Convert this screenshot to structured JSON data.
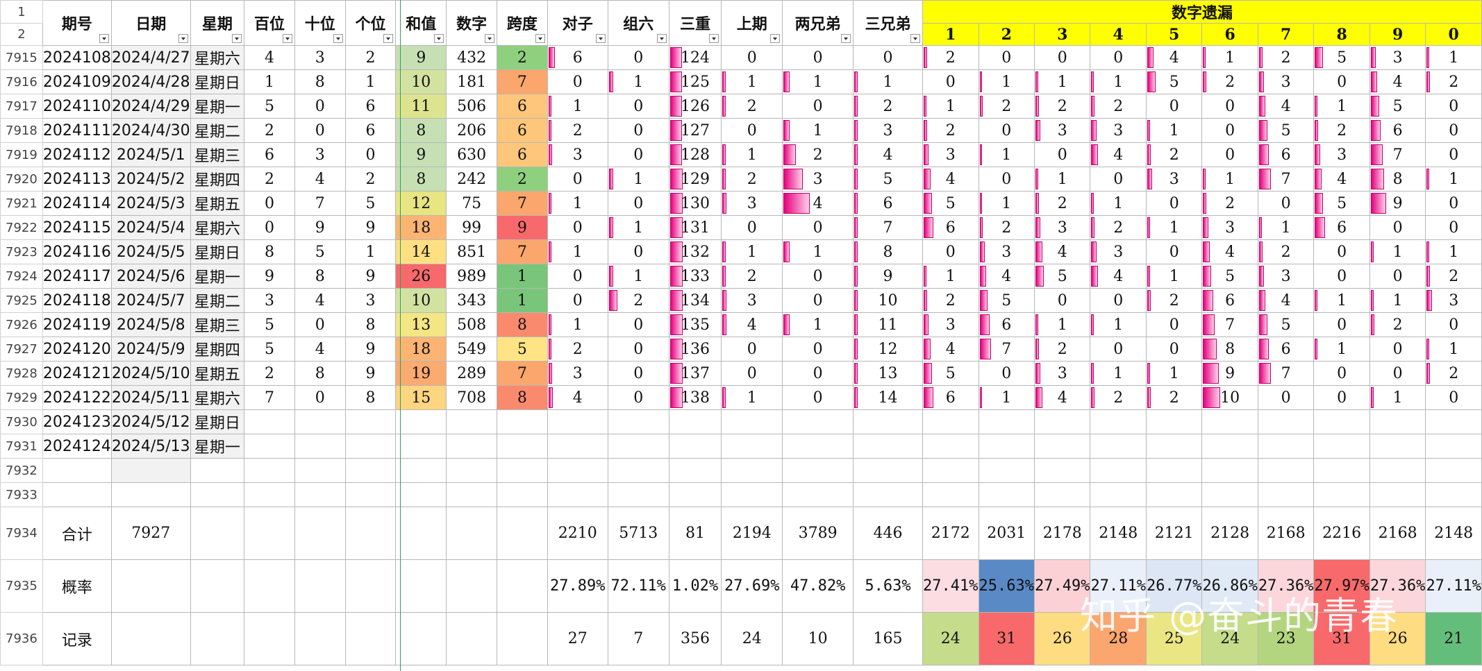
{
  "headers": {
    "issue": "期号",
    "date": "日期",
    "week": "星期",
    "hundreds": "百位",
    "tens": "十位",
    "units": "个位",
    "sum": "和值",
    "number": "数字",
    "span": "跨度",
    "pair": "对子",
    "group6": "组六",
    "triple": "三重",
    "last": "上期",
    "two_brothers": "两兄弟",
    "three_brothers": "三兄弟",
    "missing_title": "数字遗漏"
  },
  "missing_digits": [
    "1",
    "2",
    "3",
    "4",
    "5",
    "6",
    "7",
    "8",
    "9",
    "0"
  ],
  "row_numbers": [
    "1",
    "2",
    "7915",
    "7916",
    "7917",
    "7918",
    "7919",
    "7920",
    "7921",
    "7922",
    "7923",
    "7924",
    "7925",
    "7926",
    "7927",
    "7928",
    "7929",
    "7930",
    "7931",
    "7932",
    "7933",
    "7934",
    "7935",
    "7936"
  ],
  "colors": {
    "yellow": "#ffff00",
    "red_text": "#c00000",
    "purple_digit": "#7030a0",
    "bar_pink": "#e6007e"
  },
  "rows": [
    {
      "issue": "2024108",
      "date": "2024/4/27",
      "week": "星期六",
      "h": "4",
      "t": "3",
      "u": "2",
      "sum": "9",
      "num": "432",
      "span": "2",
      "pair": "6",
      "g6": "0",
      "triple": "124",
      "last": "0",
      "two": "0",
      "three": "0",
      "m": [
        "2",
        "0",
        "0",
        "0",
        "4",
        "1",
        "2",
        "5",
        "3",
        "1"
      ],
      "sumc": "#c6e0b4",
      "spanc": "#8fd07e"
    },
    {
      "issue": "2024109",
      "date": "2024/4/28",
      "week": "星期日",
      "h": "1",
      "t": "8",
      "u": "1",
      "sum": "10",
      "num": "181",
      "span": "7",
      "pair": "0",
      "g6": "1",
      "triple": "125",
      "last": "1",
      "two": "1",
      "three": "1",
      "m": [
        "0",
        "1",
        "1",
        "1",
        "5",
        "2",
        "3",
        "0",
        "4",
        "2"
      ],
      "sumc": "#d2e3a1",
      "spanc": "#fba66c"
    },
    {
      "issue": "2024110",
      "date": "2024/4/29",
      "week": "星期一",
      "h": "5",
      "t": "0",
      "u": "6",
      "sum": "11",
      "num": "506",
      "span": "6",
      "pair": "1",
      "g6": "0",
      "triple": "126",
      "last": "2",
      "two": "0",
      "three": "2",
      "m": [
        "1",
        "2",
        "2",
        "2",
        "0",
        "0",
        "4",
        "1",
        "5",
        "0"
      ],
      "sumc": "#dde48f",
      "spanc": "#fdc67a"
    },
    {
      "issue": "2024111",
      "date": "2024/4/30",
      "week": "星期二",
      "h": "2",
      "t": "0",
      "u": "6",
      "sum": "8",
      "num": "206",
      "span": "6",
      "pair": "2",
      "g6": "0",
      "triple": "127",
      "last": "0",
      "two": "1",
      "three": "3",
      "m": [
        "2",
        "0",
        "3",
        "3",
        "1",
        "0",
        "5",
        "2",
        "6",
        "0"
      ],
      "sumc": "#c6e0b4",
      "spanc": "#fdc67a"
    },
    {
      "issue": "2024112",
      "date": "2024/5/1",
      "week": "星期三",
      "h": "6",
      "t": "3",
      "u": "0",
      "sum": "9",
      "num": "630",
      "span": "6",
      "pair": "3",
      "g6": "0",
      "triple": "128",
      "last": "1",
      "two": "2",
      "three": "4",
      "m": [
        "3",
        "1",
        "0",
        "4",
        "2",
        "0",
        "6",
        "3",
        "7",
        "0"
      ],
      "sumc": "#c6e0b4",
      "spanc": "#fdc67a"
    },
    {
      "issue": "2024113",
      "date": "2024/5/2",
      "week": "星期四",
      "h": "2",
      "t": "4",
      "u": "2",
      "sum": "8",
      "num": "242",
      "span": "2",
      "pair": "0",
      "g6": "1",
      "triple": "129",
      "last": "2",
      "two": "3",
      "three": "5",
      "m": [
        "4",
        "0",
        "1",
        "0",
        "3",
        "1",
        "7",
        "4",
        "8",
        "1"
      ],
      "sumc": "#c6e0b4",
      "spanc": "#8fd07e"
    },
    {
      "issue": "2024114",
      "date": "2024/5/3",
      "week": "星期五",
      "h": "0",
      "t": "7",
      "u": "5",
      "sum": "12",
      "num": "75",
      "span": "7",
      "pair": "1",
      "g6": "0",
      "triple": "130",
      "last": "3",
      "two": "4",
      "three": "6",
      "m": [
        "5",
        "1",
        "2",
        "1",
        "0",
        "2",
        "0",
        "5",
        "9",
        "0"
      ],
      "sumc": "#e8e583",
      "spanc": "#fba66c"
    },
    {
      "issue": "2024115",
      "date": "2024/5/4",
      "week": "星期六",
      "h": "0",
      "t": "9",
      "u": "9",
      "sum": "18",
      "num": "99",
      "span": "9",
      "pair": "0",
      "g6": "1",
      "triple": "131",
      "last": "0",
      "two": "0",
      "three": "7",
      "m": [
        "6",
        "2",
        "3",
        "2",
        "1",
        "3",
        "1",
        "6",
        "0",
        "0"
      ],
      "sumc": "#fbb472",
      "spanc": "#f8696b"
    },
    {
      "issue": "2024116",
      "date": "2024/5/5",
      "week": "星期日",
      "h": "8",
      "t": "5",
      "u": "1",
      "sum": "14",
      "num": "851",
      "span": "7",
      "pair": "1",
      "g6": "0",
      "triple": "132",
      "last": "1",
      "two": "1",
      "three": "8",
      "m": [
        "0",
        "3",
        "4",
        "3",
        "0",
        "4",
        "2",
        "0",
        "1",
        "1"
      ],
      "sumc": "#fee083",
      "spanc": "#fba66c"
    },
    {
      "issue": "2024117",
      "date": "2024/5/6",
      "week": "星期一",
      "h": "9",
      "t": "8",
      "u": "9",
      "sum": "26",
      "num": "989",
      "span": "1",
      "pair": "0",
      "g6": "1",
      "triple": "133",
      "last": "2",
      "two": "0",
      "three": "9",
      "m": [
        "1",
        "4",
        "5",
        "4",
        "1",
        "5",
        "3",
        "0",
        "0",
        "2"
      ],
      "sumc": "#f8696b",
      "spanc": "#79c67b"
    },
    {
      "issue": "2024118",
      "date": "2024/5/7",
      "week": "星期二",
      "h": "3",
      "t": "4",
      "u": "3",
      "sum": "10",
      "num": "343",
      "span": "1",
      "pair": "0",
      "g6": "2",
      "triple": "134",
      "last": "3",
      "two": "0",
      "three": "10",
      "m": [
        "2",
        "5",
        "0",
        "0",
        "2",
        "6",
        "4",
        "1",
        "1",
        "3"
      ],
      "sumc": "#d2e3a1",
      "spanc": "#79c67b"
    },
    {
      "issue": "2024119",
      "date": "2024/5/8",
      "week": "星期三",
      "h": "5",
      "t": "0",
      "u": "8",
      "sum": "13",
      "num": "508",
      "span": "8",
      "pair": "1",
      "g6": "0",
      "triple": "135",
      "last": "4",
      "two": "1",
      "three": "11",
      "m": [
        "3",
        "6",
        "1",
        "1",
        "0",
        "7",
        "5",
        "0",
        "2",
        "0"
      ],
      "sumc": "#f3e684",
      "spanc": "#fa8a6e"
    },
    {
      "issue": "2024120",
      "date": "2024/5/9",
      "week": "星期四",
      "h": "5",
      "t": "4",
      "u": "9",
      "sum": "18",
      "num": "549",
      "span": "5",
      "pair": "2",
      "g6": "0",
      "triple": "136",
      "last": "0",
      "two": "0",
      "three": "12",
      "m": [
        "4",
        "7",
        "2",
        "0",
        "0",
        "8",
        "6",
        "1",
        "0",
        "1"
      ],
      "sumc": "#fbb472",
      "spanc": "#fee484"
    },
    {
      "issue": "2024121",
      "date": "2024/5/10",
      "week": "星期五",
      "h": "2",
      "t": "8",
      "u": "9",
      "sum": "19",
      "num": "289",
      "span": "7",
      "pair": "3",
      "g6": "0",
      "triple": "137",
      "last": "0",
      "two": "0",
      "three": "13",
      "m": [
        "5",
        "0",
        "3",
        "1",
        "1",
        "9",
        "7",
        "0",
        "0",
        "2"
      ],
      "sumc": "#fbaa70",
      "spanc": "#fba66c"
    },
    {
      "issue": "2024122",
      "date": "2024/5/11",
      "week": "星期六",
      "h": "7",
      "t": "0",
      "u": "8",
      "sum": "15",
      "num": "708",
      "span": "8",
      "pair": "4",
      "g6": "0",
      "triple": "138",
      "last": "1",
      "two": "0",
      "three": "14",
      "m": [
        "6",
        "1",
        "4",
        "2",
        "2",
        "10",
        "0",
        "0",
        "1",
        "0"
      ],
      "sumc": "#fed580",
      "spanc": "#fa8a6e"
    }
  ],
  "future_rows": [
    {
      "issue": "2024123",
      "date": "2024/5/12",
      "week": "星期日"
    },
    {
      "issue": "2024124",
      "date": "2024/5/13",
      "week": "星期一"
    }
  ],
  "totals": {
    "label": "合计",
    "issue_total": "7927",
    "values": [
      "2210",
      "5713",
      "81",
      "2194",
      "3789",
      "446"
    ],
    "missing": [
      "2172",
      "2031",
      "2178",
      "2148",
      "2121",
      "2128",
      "2168",
      "2216",
      "2168",
      "2148"
    ]
  },
  "probability": {
    "label": "概率",
    "values": [
      "27.89%",
      "72.11%",
      "1.02%",
      "27.69%",
      "47.82%",
      "5.63%"
    ],
    "missing": [
      "27.41%",
      "25.63%",
      "27.49%",
      "27.11%",
      "26.77%",
      "26.86%",
      "27.36%",
      "27.97%",
      "27.36%",
      "27.11%"
    ],
    "missing_colors": [
      "#fbdde2",
      "#5a8ac6",
      "#fbd1d6",
      "#eaf0fa",
      "#dce6f5",
      "#e0e9f6",
      "#fbd7dc",
      "#f8696b",
      "#fbd7dc",
      "#eaf0fa"
    ]
  },
  "record": {
    "label": "记录",
    "values": [
      "27",
      "7",
      "356",
      "24",
      "10",
      "165"
    ],
    "missing": [
      "24",
      "31",
      "26",
      "28",
      "25",
      "24",
      "23",
      "31",
      "26",
      "21"
    ],
    "missing_colors": [
      "#c5dc8a",
      "#f8696b",
      "#fedc81",
      "#fba56f",
      "#e9e683",
      "#c5dc8a",
      "#b3d57f",
      "#f8696b",
      "#fedc81",
      "#63be7b"
    ]
  },
  "watermark": "知乎 @奋斗的青春"
}
